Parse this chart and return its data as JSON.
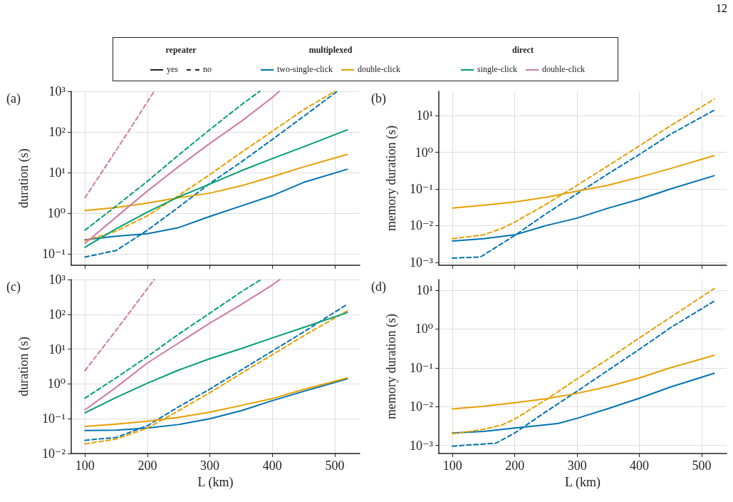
{
  "chart_data": [
    {
      "type": "line",
      "title": "(a)",
      "ylabel": "duration (s)",
      "log": "y",
      "grid": true,
      "legend": "top",
      "tick_labels": "y",
      "annotations": [
        "12",
        "repeater",
        "yes",
        "no",
        "multiplexed",
        "direct"
      ],
      "xlim": [
        78,
        540
      ],
      "xticks": [
        100,
        200,
        300,
        400,
        500
      ],
      "ylim": [
        0.052,
        1000
      ],
      "yticks": [
        {
          "value": 0.1,
          "label": "10⁻¹"
        },
        {
          "value": 1,
          "label": "10⁰"
        },
        {
          "value": 10,
          "label": "10¹"
        },
        {
          "value": 100,
          "label": "10²"
        },
        {
          "value": 1000,
          "label": "10³"
        }
      ],
      "series": [
        {
          "name": "two-single-click",
          "color": "#0072b2",
          "line_style": "solid",
          "x": [
            100,
            150,
            200,
            250,
            300,
            350,
            400,
            450,
            520
          ],
          "values": [
            0.22,
            0.27,
            0.31,
            0.44,
            0.83,
            1.5,
            2.7,
            5.7,
            12
          ]
        },
        {
          "color": "#0072b2",
          "line_style": "dashed",
          "x": [
            100,
            150,
            200,
            250,
            300,
            350,
            400,
            450,
            504
          ],
          "values": [
            0.083,
            0.12,
            0.38,
            1.4,
            5.4,
            18,
            65,
            240,
            1000
          ]
        },
        {
          "name": "double-click",
          "color": "#e69f00",
          "line_style": "solid",
          "x": [
            100,
            150,
            200,
            250,
            300,
            350,
            400,
            450,
            520
          ],
          "values": [
            1.16,
            1.38,
            1.77,
            2.4,
            3.1,
            4.7,
            7.9,
            13.7,
            28
          ]
        },
        {
          "color": "#e69f00",
          "line_style": "dashed",
          "x": [
            100,
            150,
            200,
            250,
            300,
            350,
            400,
            450,
            500
          ],
          "values": [
            0.21,
            0.36,
            0.86,
            2.7,
            8.9,
            31,
            104,
            350,
            1000
          ]
        },
        {
          "name": "single-click",
          "color": "#009e73",
          "line_style": "solid",
          "x": [
            100,
            150,
            200,
            250,
            300,
            350,
            400,
            450,
            520
          ],
          "values": [
            0.145,
            0.41,
            1.06,
            2.5,
            5.2,
            11,
            22,
            43,
            112
          ]
        },
        {
          "color": "#009e73",
          "line_style": "dashed",
          "x": [
            100,
            150,
            200,
            250,
            300,
            350,
            380
          ],
          "values": [
            0.38,
            1.5,
            6.1,
            27,
            114,
            460,
            1000
          ]
        },
        {
          "name": "double-click",
          "color": "#cc79a7",
          "line_style": "solid",
          "x": [
            100,
            150,
            200,
            250,
            300,
            350,
            400,
            411
          ],
          "values": [
            0.18,
            0.8,
            3.5,
            14,
            52,
            180,
            700,
            1000
          ]
        },
        {
          "color": "#cc79a7",
          "line_style": "dashed",
          "x": [
            100,
            150,
            200,
            211
          ],
          "values": [
            2.4,
            35,
            550,
            1000
          ]
        }
      ]
    },
    {
      "type": "line",
      "title": "(b)",
      "ylabel": "memory duration (s)",
      "log": "y",
      "grid": true,
      "tick_labels": "y",
      "xlim": [
        78,
        540
      ],
      "xticks": [
        100,
        200,
        300,
        400,
        500
      ],
      "ylim": [
        0.00083,
        46
      ],
      "yticks": [
        {
          "value": 0.001,
          "label": "10⁻³"
        },
        {
          "value": 0.01,
          "label": "10⁻²"
        },
        {
          "value": 0.1,
          "label": "10⁻¹"
        },
        {
          "value": 1,
          "label": "10⁰"
        },
        {
          "value": 10,
          "label": "10¹"
        }
      ],
      "series": [
        {
          "color": "#0072b2",
          "line_style": "solid",
          "x": [
            100,
            150,
            200,
            250,
            300,
            350,
            400,
            450,
            520
          ],
          "values": [
            0.0038,
            0.0044,
            0.0056,
            0.01,
            0.016,
            0.03,
            0.052,
            0.1,
            0.23
          ]
        },
        {
          "color": "#0072b2",
          "line_style": "dashed",
          "x": [
            100,
            145,
            200,
            250,
            300,
            350,
            400,
            450,
            520
          ],
          "values": [
            0.0013,
            0.0014,
            0.0054,
            0.021,
            0.074,
            0.26,
            0.87,
            3.1,
            14
          ]
        },
        {
          "color": "#e69f00",
          "line_style": "solid",
          "x": [
            100,
            150,
            200,
            250,
            300,
            350,
            400,
            450,
            520
          ],
          "values": [
            0.03,
            0.036,
            0.044,
            0.059,
            0.087,
            0.126,
            0.21,
            0.36,
            0.81
          ]
        },
        {
          "color": "#e69f00",
          "line_style": "dashed",
          "x": [
            100,
            150,
            180,
            200,
            250,
            300,
            350,
            400,
            450,
            520
          ],
          "values": [
            0.0044,
            0.0056,
            0.0085,
            0.0125,
            0.038,
            0.126,
            0.43,
            1.5,
            5.3,
            28
          ]
        }
      ]
    },
    {
      "type": "line",
      "title": "(c)",
      "xlabel": "L (km)",
      "ylabel": "duration (s)",
      "log": "y",
      "grid": true,
      "xlim": [
        78,
        540
      ],
      "xticks": [
        100,
        200,
        300,
        400,
        500
      ],
      "ylim": [
        0.01,
        1000
      ],
      "yticks": [
        {
          "value": 0.01,
          "label": "10⁻²"
        },
        {
          "value": 0.1,
          "label": "10⁻¹"
        },
        {
          "value": 1,
          "label": "10⁰"
        },
        {
          "value": 10,
          "label": "10¹"
        },
        {
          "value": 100,
          "label": "10²"
        },
        {
          "value": 1000,
          "label": "10³"
        }
      ],
      "series": [
        {
          "color": "#0072b2",
          "line_style": "solid",
          "x": [
            100,
            150,
            200,
            250,
            300,
            350,
            400,
            450,
            520
          ],
          "values": [
            0.046,
            0.047,
            0.054,
            0.068,
            0.1,
            0.17,
            0.33,
            0.61,
            1.4
          ]
        },
        {
          "color": "#0072b2",
          "line_style": "dashed",
          "x": [
            100,
            150,
            200,
            250,
            300,
            350,
            400,
            450,
            520
          ],
          "values": [
            0.024,
            0.029,
            0.063,
            0.22,
            0.71,
            2.5,
            8.8,
            31,
            195
          ]
        },
        {
          "color": "#e69f00",
          "line_style": "solid",
          "x": [
            100,
            150,
            200,
            250,
            300,
            350,
            400,
            450,
            520
          ],
          "values": [
            0.06,
            0.07,
            0.085,
            0.11,
            0.155,
            0.24,
            0.38,
            0.69,
            1.48
          ]
        },
        {
          "color": "#e69f00",
          "line_style": "dashed",
          "x": [
            100,
            150,
            200,
            250,
            300,
            350,
            400,
            450,
            520
          ],
          "values": [
            0.019,
            0.026,
            0.054,
            0.17,
            0.56,
            2.0,
            6.9,
            24,
            126
          ]
        },
        {
          "color": "#009e73",
          "line_style": "solid",
          "x": [
            100,
            150,
            200,
            250,
            300,
            350,
            400,
            450,
            520
          ],
          "values": [
            0.148,
            0.41,
            1.05,
            2.5,
            5.3,
            10.3,
            21,
            42,
            112
          ]
        },
        {
          "color": "#009e73",
          "line_style": "dashed",
          "x": [
            100,
            150,
            200,
            250,
            300,
            350,
            382
          ],
          "values": [
            0.39,
            1.5,
            6.1,
            27,
            108,
            440,
            1000
          ]
        },
        {
          "color": "#cc79a7",
          "line_style": "solid",
          "x": [
            100,
            150,
            200,
            250,
            300,
            350,
            400,
            412
          ],
          "values": [
            0.18,
            0.8,
            4.0,
            15,
            56,
            190,
            700,
            1000
          ]
        },
        {
          "color": "#cc79a7",
          "line_style": "dashed",
          "x": [
            100,
            150,
            200,
            211
          ],
          "values": [
            2.4,
            35,
            550,
            1000
          ]
        }
      ]
    },
    {
      "type": "line",
      "title": "(d)",
      "xlabel": "L (km)",
      "ylabel": "memory duration (s)",
      "log": "y",
      "grid": true,
      "xlim": [
        78,
        540
      ],
      "xticks": [
        100,
        200,
        300,
        400,
        500
      ],
      "ylim": [
        0.00062,
        18.8
      ],
      "yticks": [
        {
          "value": 0.001,
          "label": "10⁻³"
        },
        {
          "value": 0.01,
          "label": "10⁻²"
        },
        {
          "value": 0.1,
          "label": "10⁻¹"
        },
        {
          "value": 1,
          "label": "10⁰"
        },
        {
          "value": 10,
          "label": "10¹"
        }
      ],
      "series": [
        {
          "color": "#0072b2",
          "line_style": "solid",
          "x": [
            100,
            150,
            200,
            250,
            270,
            300,
            350,
            400,
            450,
            520
          ],
          "values": [
            0.0021,
            0.0023,
            0.0028,
            0.0034,
            0.0037,
            0.005,
            0.0089,
            0.0164,
            0.032,
            0.072
          ]
        },
        {
          "color": "#0072b2",
          "line_style": "dashed",
          "x": [
            100,
            170,
            200,
            250,
            300,
            350,
            400,
            450,
            520
          ],
          "values": [
            0.00096,
            0.00115,
            0.0021,
            0.0074,
            0.025,
            0.087,
            0.3,
            1.08,
            5.2
          ]
        },
        {
          "color": "#e69f00",
          "line_style": "solid",
          "x": [
            100,
            150,
            200,
            250,
            300,
            350,
            400,
            450,
            520
          ],
          "values": [
            0.0087,
            0.0102,
            0.0126,
            0.016,
            0.022,
            0.033,
            0.055,
            0.1,
            0.21
          ]
        },
        {
          "color": "#e69f00",
          "line_style": "dashed",
          "x": [
            100,
            150,
            180,
            200,
            250,
            300,
            350,
            400,
            450,
            520
          ],
          "values": [
            0.002,
            0.0026,
            0.0034,
            0.0048,
            0.015,
            0.052,
            0.17,
            0.59,
            2.0,
            11
          ]
        }
      ]
    }
  ]
}
